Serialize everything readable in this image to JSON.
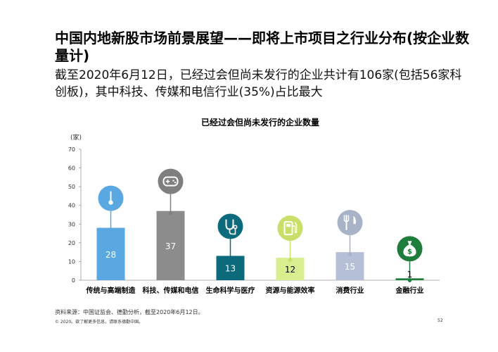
{
  "title": "中国内地新股市场前景展望——即将上市项目之行业分布(按企业数量计)",
  "subtitle": "截至2020年6月12日，已经过会但尚未发行的企业共计有106家(包括56家科创板)，其中科技、传媒和电信行业(35%)占比最大",
  "source": "资料来源：中国证监会、德勤分析，截至2020年6月12日。",
  "copyright": "© 2020。欲了解更多信息，请联系德勤中国。",
  "page_number": "52",
  "chart_data": {
    "type": "bar",
    "title": "已经过会但尚未发行的企业数量",
    "ylabel": "(家)",
    "ylim": [
      0,
      70
    ],
    "yticks": [
      0,
      10,
      20,
      30,
      40,
      50,
      60,
      70
    ],
    "categories": [
      "传统与高端制造",
      "科技、传媒和电信",
      "生命科学与医疗",
      "资源与能源效率",
      "消费行业",
      "金融行业"
    ],
    "values": [
      28,
      37,
      13,
      12,
      15,
      1
    ],
    "bar_colors": [
      "#5aa8e2",
      "#8c8c8c",
      "#0b6a7c",
      "#d9ef8f",
      "#b5bfd6",
      "#1e7d3a"
    ],
    "icons": [
      {
        "name": "thermometer-icon",
        "color": "#5aa8e2"
      },
      {
        "name": "gamepad-icon",
        "color": "#7f7f7f"
      },
      {
        "name": "stethoscope-icon",
        "color": "#0b6a7c"
      },
      {
        "name": "fuel-pump-icon",
        "color": "#c8e06a"
      },
      {
        "name": "fork-knife-icon",
        "color": "#a8b3c8"
      },
      {
        "name": "money-bag-icon",
        "color": "#1e7d3a"
      }
    ],
    "grid": false,
    "legend": "none"
  }
}
